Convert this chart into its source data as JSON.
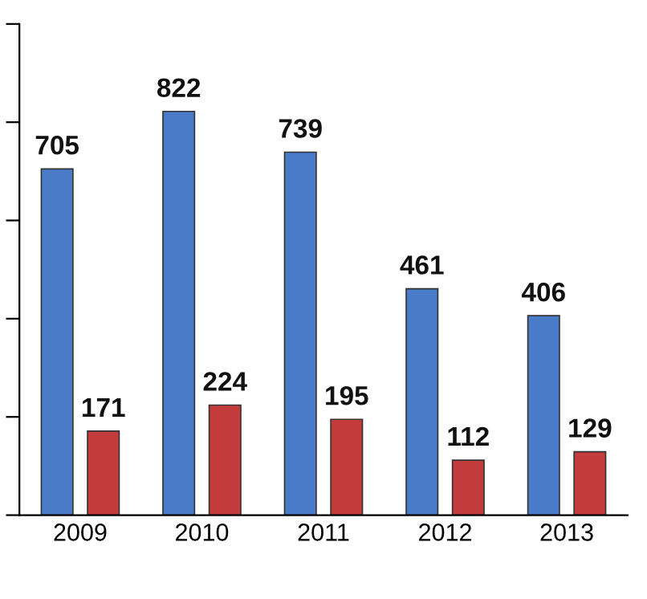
{
  "chart_data": {
    "type": "bar",
    "categories": [
      "2009",
      "2010",
      "2011",
      "2012",
      "2013"
    ],
    "series": [
      {
        "color": "#4a7bc8",
        "values": [
          705,
          822,
          739,
          461,
          406
        ]
      },
      {
        "color": "#c33b3b",
        "values": [
          171,
          224,
          195,
          112,
          129
        ]
      }
    ],
    "ylim": [
      0,
      1000
    ],
    "yticks": [
      {
        "value": 0,
        "label": null
      },
      {
        "value": 200,
        "label": null
      },
      {
        "value": 400,
        "label": null
      },
      {
        "value": 600,
        "label": null
      },
      {
        "value": 800,
        "label": null
      },
      {
        "value": 1000,
        "label": null
      }
    ],
    "tick_labels": "x",
    "data_labels": true,
    "grid": false,
    "legend": false
  }
}
